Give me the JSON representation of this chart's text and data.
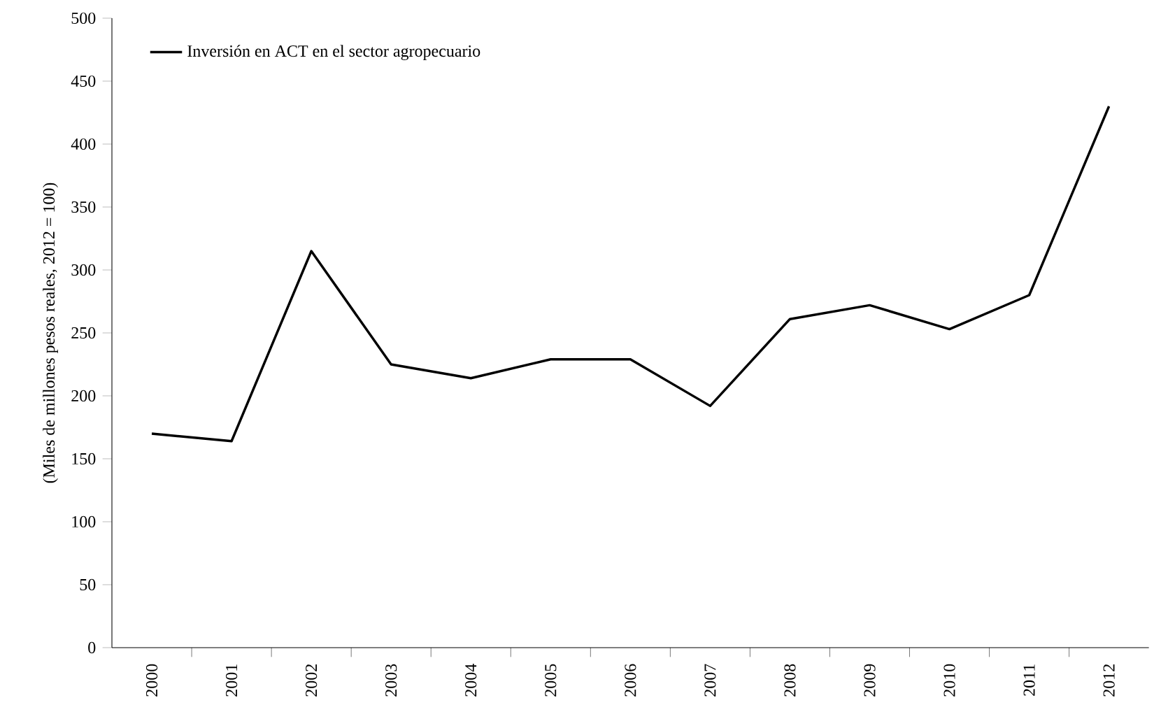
{
  "chart_data": {
    "type": "line",
    "ylabel": "(Miles de millones pesos reales, 2012 = 100)",
    "categories": [
      "2000",
      "2001",
      "2002",
      "2003",
      "2004",
      "2005",
      "2006",
      "2007",
      "2008",
      "2009",
      "2010",
      "2011",
      "2012"
    ],
    "series": [
      {
        "name": "Inversión en ACT en el sector agropecuario",
        "color": "#000000",
        "values": [
          170,
          164,
          315,
          225,
          214,
          229,
          229,
          192,
          261,
          272,
          253,
          280,
          430
        ]
      }
    ],
    "ylim": [
      0,
      500
    ],
    "yticks": [
      0,
      50,
      100,
      150,
      200,
      250,
      300,
      350,
      400,
      450,
      500
    ],
    "legend": "top left"
  }
}
